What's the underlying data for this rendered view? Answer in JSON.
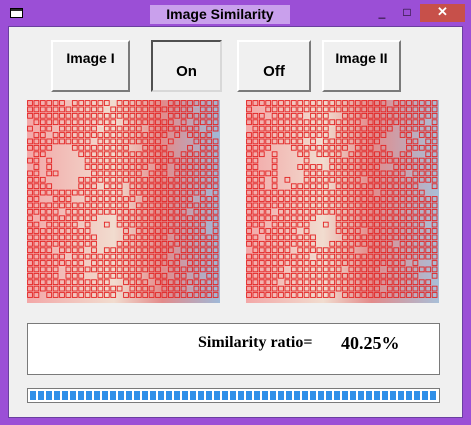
{
  "window": {
    "title": "Image Similarity",
    "minimize_glyph": "_",
    "maximize_glyph": "□",
    "close_glyph": "✕"
  },
  "buttons": {
    "image1_label": "Image I",
    "on_label": "On",
    "off_label": "Off",
    "image2_label": "Image II"
  },
  "result": {
    "label": "Similarity ratio=",
    "value": "40.25%"
  },
  "progress": {
    "fraction": 1.0
  },
  "colors": {
    "titlebar": "#9b4fd6",
    "grid_red": "#e32222",
    "progress_blue": "#2f8fe8"
  }
}
